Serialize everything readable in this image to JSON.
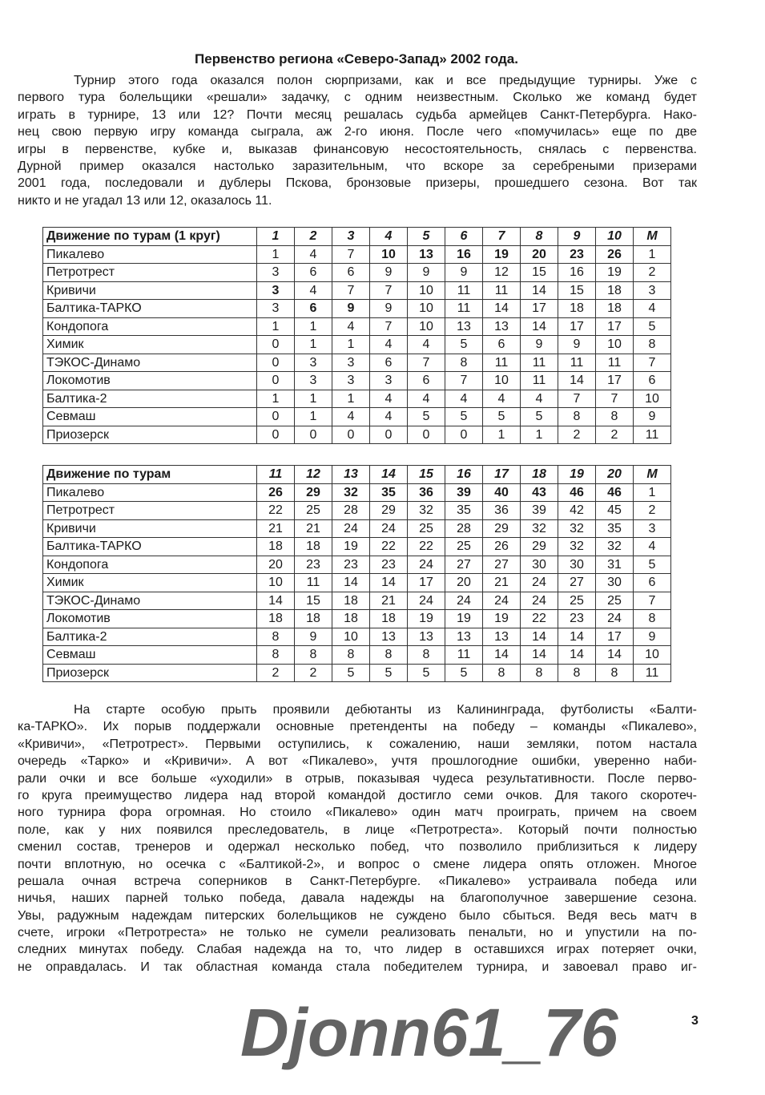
{
  "title": "Первенство региона «Северо-Запад» 2002 года.",
  "intro_lines": [
    "Турнир этого года оказался полон сюрпризами, как и все предыдущие турниры. Уже с",
    "первого тура болельщики «решали» задачку, с одним неизвестным. Сколько же команд будет",
    "играть в турнире, 13 или 12? Почти месяц решалась судьба армейцев Санкт-Петербурга. Нако-",
    "нец свою первую игру команда сыграла, аж 2-го июня. После чего «помучилась» еще по две",
    "игры в первенстве, кубке и, выказав финансовую несостоятельность, снялась с первенства.",
    "Дурной пример оказался настолько заразительным, что вскоре за серебреными призерами",
    "2001 года, последовали и дублеры Пскова, бронзовые призеры, прошедшего сезона. Вот так",
    "никто и не угадал 13 или 12, оказалось 11."
  ],
  "tables": [
    {
      "header": [
        "Движение по турам (1 круг)",
        "1",
        "2",
        "3",
        "4",
        "5",
        "6",
        "7",
        "8",
        "9",
        "10",
        "М"
      ],
      "rows": [
        {
          "team": "Пикалево",
          "values": [
            "1",
            "4",
            "7",
            "10",
            "13",
            "16",
            "19",
            "20",
            "23",
            "26",
            "1"
          ],
          "bold": [
            3,
            4,
            5,
            6,
            7,
            8,
            9
          ]
        },
        {
          "team": "Петротрест",
          "values": [
            "3",
            "6",
            "6",
            "9",
            "9",
            "9",
            "12",
            "15",
            "16",
            "19",
            "2"
          ],
          "bold": []
        },
        {
          "team": "Кривичи",
          "values": [
            "3",
            "4",
            "7",
            "7",
            "10",
            "11",
            "11",
            "14",
            "15",
            "18",
            "3"
          ],
          "bold": [
            0
          ]
        },
        {
          "team": "Балтика-ТАРКО",
          "values": [
            "3",
            "6",
            "9",
            "9",
            "10",
            "11",
            "14",
            "17",
            "18",
            "18",
            "4"
          ],
          "bold": [
            1,
            2
          ]
        },
        {
          "team": "Кондопога",
          "values": [
            "1",
            "1",
            "4",
            "7",
            "10",
            "13",
            "13",
            "14",
            "17",
            "17",
            "5"
          ],
          "bold": []
        },
        {
          "team": "Химик",
          "values": [
            "0",
            "1",
            "1",
            "4",
            "4",
            "5",
            "6",
            "9",
            "9",
            "10",
            "8"
          ],
          "bold": []
        },
        {
          "team": "ТЭКОС-Динамо",
          "values": [
            "0",
            "3",
            "3",
            "6",
            "7",
            "8",
            "11",
            "11",
            "11",
            "11",
            "7"
          ],
          "bold": []
        },
        {
          "team": "Локомотив",
          "values": [
            "0",
            "3",
            "3",
            "3",
            "6",
            "7",
            "10",
            "11",
            "14",
            "17",
            "6"
          ],
          "bold": []
        },
        {
          "team": "Балтика-2",
          "values": [
            "1",
            "1",
            "1",
            "4",
            "4",
            "4",
            "4",
            "4",
            "7",
            "7",
            "10"
          ],
          "bold": []
        },
        {
          "team": "Севмаш",
          "values": [
            "0",
            "1",
            "4",
            "4",
            "5",
            "5",
            "5",
            "5",
            "8",
            "8",
            "9"
          ],
          "bold": []
        },
        {
          "team": "Приозерск",
          "values": [
            "0",
            "0",
            "0",
            "0",
            "0",
            "0",
            "1",
            "1",
            "2",
            "2",
            "11"
          ],
          "bold": []
        }
      ]
    },
    {
      "header": [
        "Движение по турам",
        "11",
        "12",
        "13",
        "14",
        "15",
        "16",
        "17",
        "18",
        "19",
        "20",
        "М"
      ],
      "rows": [
        {
          "team": "Пикалево",
          "values": [
            "26",
            "29",
            "32",
            "35",
            "36",
            "39",
            "40",
            "43",
            "46",
            "46",
            "1"
          ],
          "bold": [
            0,
            1,
            2,
            3,
            4,
            5,
            6,
            7,
            8,
            9
          ]
        },
        {
          "team": "Петротрест",
          "values": [
            "22",
            "25",
            "28",
            "29",
            "32",
            "35",
            "36",
            "39",
            "42",
            "45",
            "2"
          ],
          "bold": []
        },
        {
          "team": "Кривичи",
          "values": [
            "21",
            "21",
            "24",
            "24",
            "25",
            "28",
            "29",
            "32",
            "32",
            "35",
            "3"
          ],
          "bold": []
        },
        {
          "team": "Балтика-ТАРКО",
          "values": [
            "18",
            "18",
            "19",
            "22",
            "22",
            "25",
            "26",
            "29",
            "32",
            "32",
            "4"
          ],
          "bold": []
        },
        {
          "team": "Кондопога",
          "values": [
            "20",
            "23",
            "23",
            "23",
            "24",
            "27",
            "27",
            "30",
            "30",
            "31",
            "5"
          ],
          "bold": []
        },
        {
          "team": "Химик",
          "values": [
            "10",
            "11",
            "14",
            "14",
            "17",
            "20",
            "21",
            "24",
            "27",
            "30",
            "6"
          ],
          "bold": []
        },
        {
          "team": "ТЭКОС-Динамо",
          "values": [
            "14",
            "15",
            "18",
            "21",
            "24",
            "24",
            "24",
            "24",
            "25",
            "25",
            "7"
          ],
          "bold": []
        },
        {
          "team": "Локомотив",
          "values": [
            "18",
            "18",
            "18",
            "18",
            "19",
            "19",
            "19",
            "22",
            "23",
            "24",
            "8"
          ],
          "bold": []
        },
        {
          "team": "Балтика-2",
          "values": [
            "8",
            "9",
            "10",
            "13",
            "13",
            "13",
            "13",
            "14",
            "14",
            "17",
            "9"
          ],
          "bold": []
        },
        {
          "team": "Севмаш",
          "values": [
            "8",
            "8",
            "8",
            "8",
            "8",
            "11",
            "14",
            "14",
            "14",
            "14",
            "10"
          ],
          "bold": []
        },
        {
          "team": "Приозерск",
          "values": [
            "2",
            "2",
            "5",
            "5",
            "5",
            "5",
            "8",
            "8",
            "8",
            "8",
            "11"
          ],
          "bold": []
        }
      ]
    }
  ],
  "body_lines": [
    "На старте особую прыть проявили дебютанты из Калининграда, футболисты «Балти-",
    "ка-ТАРКО». Их порыв поддержали основные претенденты на победу – команды «Пикалево»,",
    "«Кривичи», «Петротрест». Первыми оступились, к сожалению, наши земляки, потом настала",
    "очередь «Тарко» и «Кривичи». А вот «Пикалево», учтя прошлогодние ошибки, уверенно наби-",
    "рали очки и все больше «уходили» в отрыв, показывая чудеса результативности. После перво-",
    "го круга преимущество лидера над второй командой достигло семи очков. Для такого скоротеч-",
    "ного турнира фора огромная. Но стоило «Пикалево» один матч проиграть, причем на своем",
    "поле, как у них появился преследователь, в лице «Петротреста». Который почти полностью",
    "сменил состав, тренеров и одержал несколько побед, что позволило приблизиться к лидеру",
    "почти вплотную, но осечка с «Балтикой-2», и вопрос о смене лидера опять отложен. Многое",
    "решала очная встреча соперников в Санкт-Петербурге. «Пикалево» устраивала победа или",
    "ничья, наших парней только победа, давала надежды на благополучное завершение сезона.",
    "Увы, радужным надеждам питерских болельщиков не суждено было сбыться. Ведя весь матч в",
    "счете, игроки «Петротреста» не только не сумели реализовать пенальти, но и упустили на по-",
    "следних минутах победу. Слабая надежда на то, что лидер в оставшихся играх потеряет очки,",
    "не оправдалась. И так областная команда стала победителем турнира, и завоевал право иг-"
  ],
  "page_number": "3",
  "watermark": "Djonn61_76"
}
